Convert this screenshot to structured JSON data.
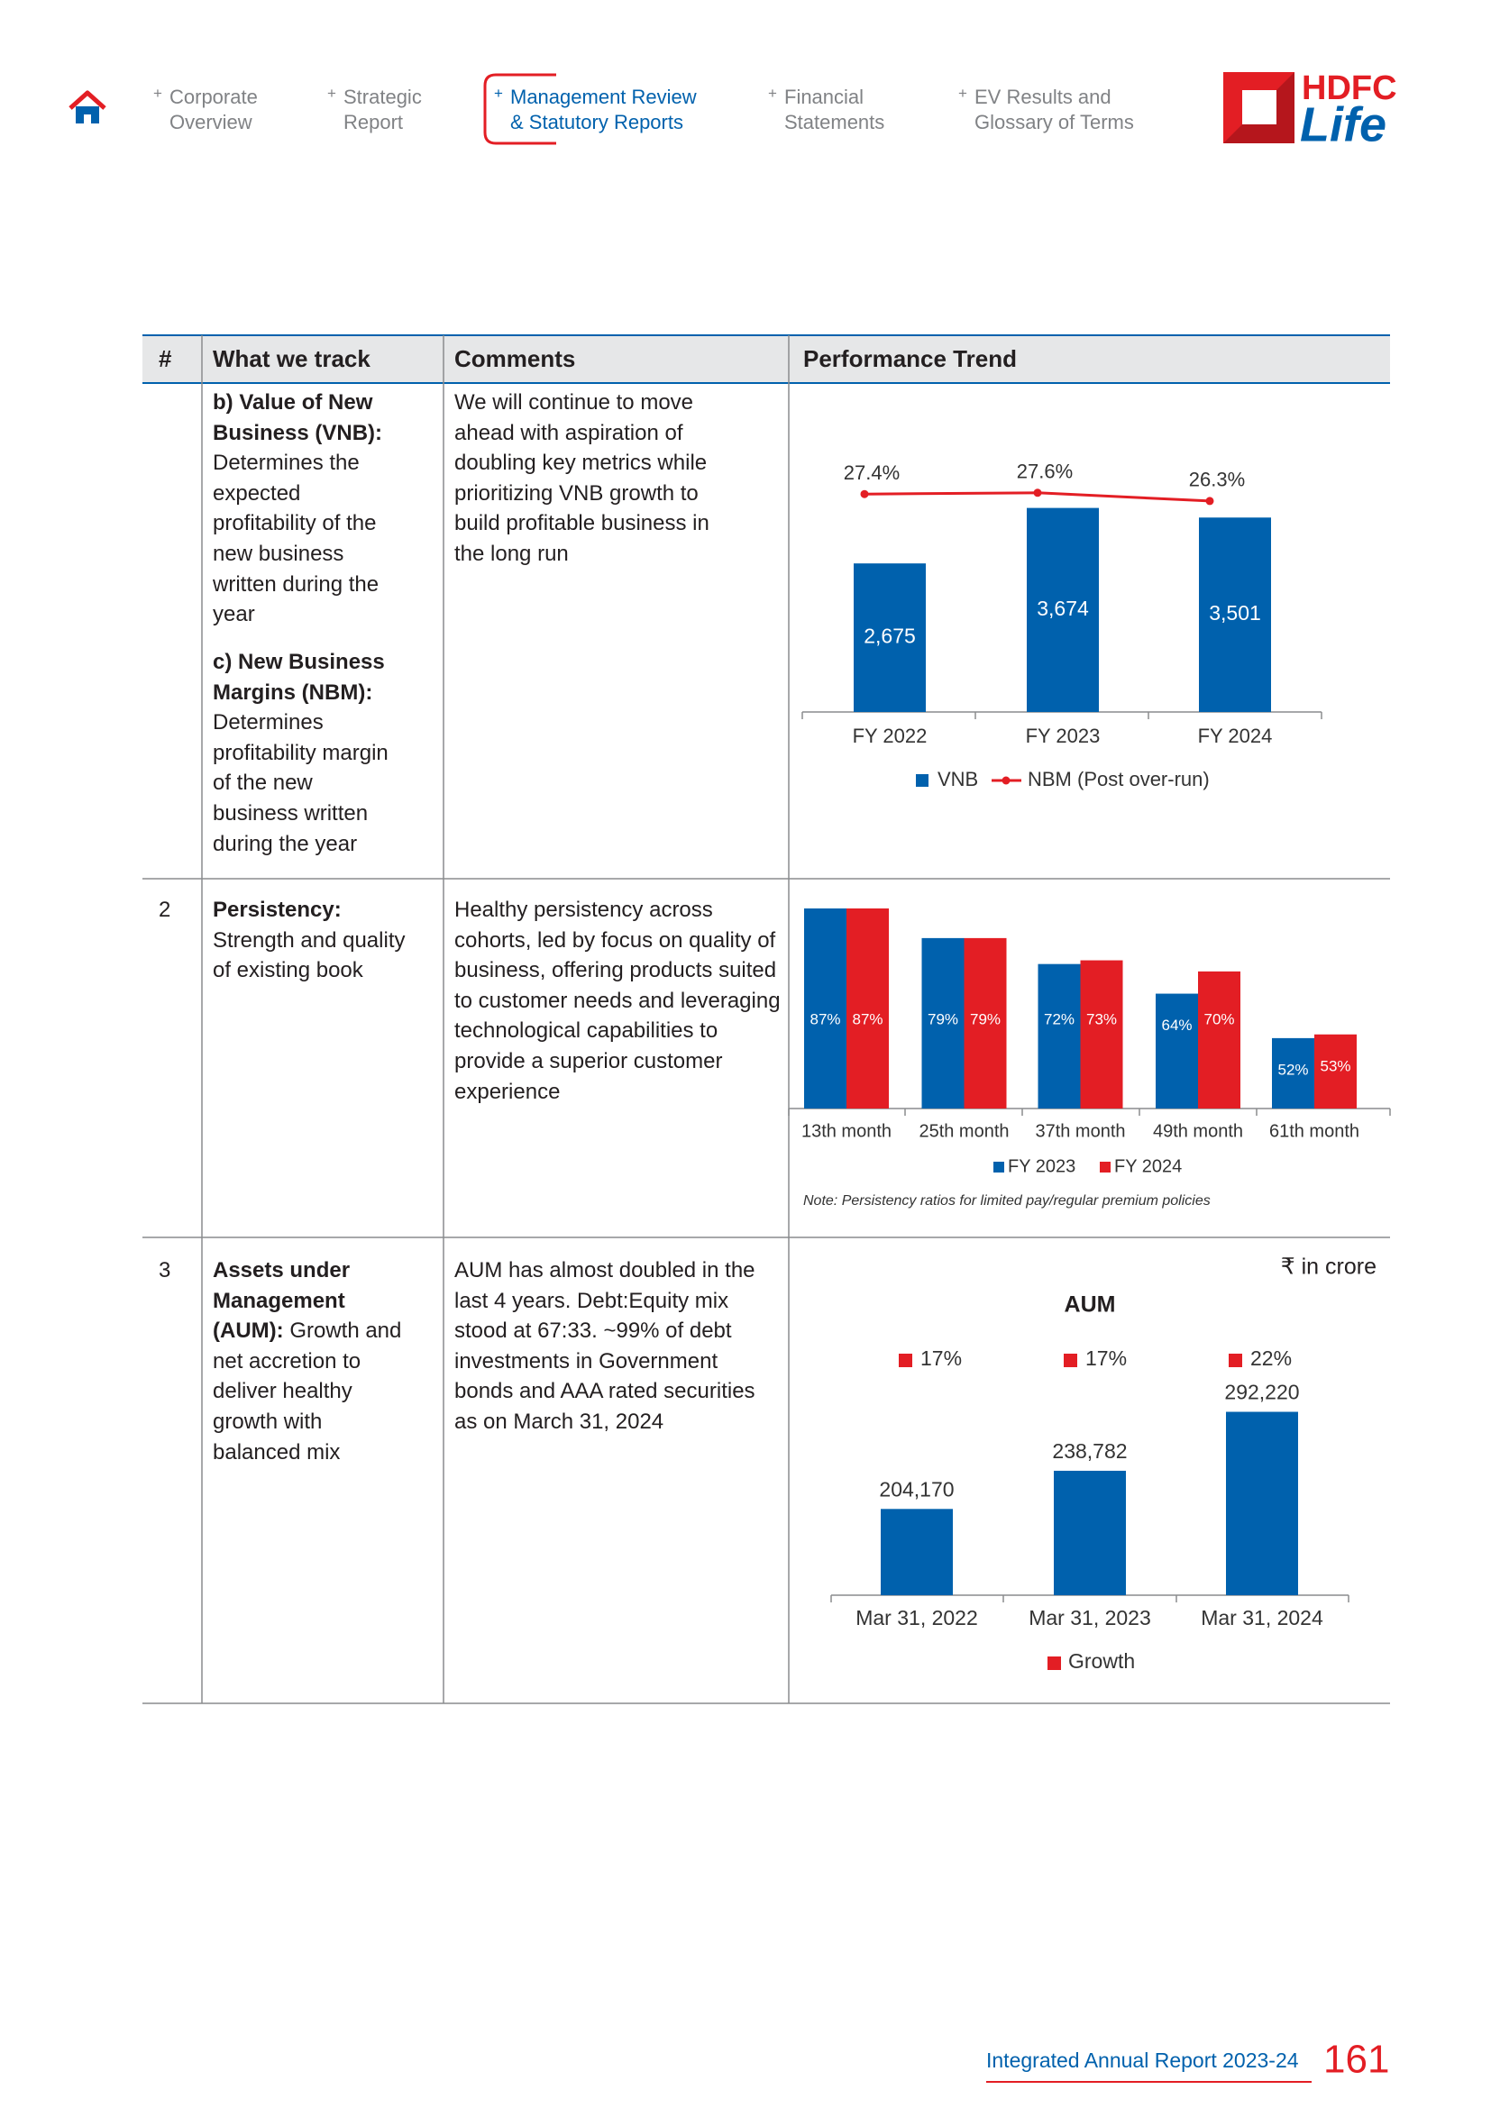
{
  "nav": {
    "marker": "+",
    "active": 2,
    "items": [
      {
        "lines": [
          "Corporate",
          "Overview"
        ]
      },
      {
        "lines": [
          "Strategic",
          "Report"
        ]
      },
      {
        "lines": [
          "Management Review",
          "& Statutory Reports"
        ]
      },
      {
        "lines": [
          "Financial",
          "Statements"
        ]
      },
      {
        "lines": [
          "EV Results and",
          "Glossary of Terms"
        ]
      }
    ]
  },
  "logo": {
    "top": "HDFC",
    "bottom": "Life"
  },
  "table": {
    "headers": [
      "#",
      "What we track",
      "Comments",
      "Performance Trend"
    ],
    "rows": [
      {
        "track": [
          {
            "title": "b) Value of New Business (VNB):",
            "text": "Determines the expected profitability of the new business written during the year"
          },
          {
            "title": "c) New Business Margins (NBM):",
            "text": "Determines profitability margin of the new business written during the year"
          }
        ],
        "comments": "We will continue to move ahead with aspiration of doubling key metrics while prioritizing VNB growth to build profitable business in the long run"
      },
      {
        "number": 2,
        "track": [
          {
            "title": "Persistency:",
            "text": "Strength and quality of existing book"
          }
        ],
        "comments": "Healthy persistency across cohorts, led by focus on quality of business, offering products suited to customer needs and leveraging technological capabilities to provide a superior customer experience"
      },
      {
        "number": 3,
        "track": [
          {
            "title": "Assets under Management (AUM):",
            "text": "Growth and net accretion to deliver healthy growth with balanced mix"
          }
        ],
        "comments": "AUM has almost doubled in the last 4 years. Debt:Equity mix stood at 67:33. ~99% of debt investments in Government bonds and AAA rated securities as on March 31, 2024"
      }
    ]
  },
  "charts": [
    {
      "type": "bar-line",
      "categories": [
        "FY 2022",
        "FY 2023",
        "FY 2024"
      ],
      "series": [
        {
          "name": "VNB",
          "color": "#0061ad",
          "values": [
            2675,
            3674,
            3501
          ],
          "value_labels": [
            "2,675",
            "3,674",
            "3,501"
          ]
        },
        {
          "name": "NBM (Post over-run)",
          "color": "#e31e24",
          "axis": "y2",
          "values": [
            27.4,
            27.6,
            26.3
          ],
          "value_labels": [
            "27.4%",
            "27.6%",
            "26.3%"
          ]
        }
      ],
      "ylim": [
        0,
        3700
      ],
      "y2lim": [
        20,
        30
      ]
    },
    {
      "type": "grouped-bar",
      "categories": [
        "13th month",
        "25th month",
        "37th month",
        "49th month",
        "61th month"
      ],
      "series": [
        {
          "name": "FY 2023",
          "color": "#0061ad",
          "values": [
            87,
            79,
            72,
            64,
            52
          ],
          "value_labels": [
            "87%",
            "79%",
            "72%",
            "64%",
            "52%"
          ]
        },
        {
          "name": "FY 2024",
          "color": "#e31e24",
          "values": [
            87,
            79,
            73,
            70,
            53
          ],
          "value_labels": [
            "87%",
            "79%",
            "73%",
            "70%",
            "53%"
          ]
        }
      ],
      "ylim": [
        33,
        87
      ],
      "note": "Note: Persistency ratios for limited pay/regular premium policies"
    },
    {
      "type": "bar",
      "title": "AUM",
      "unit": "₹ in crore",
      "categories": [
        "Mar 31, 2022",
        "Mar 31, 2023",
        "Mar 31, 2024"
      ],
      "values": [
        204170,
        238782,
        292220
      ],
      "value_labels": [
        "204,170",
        "238,782",
        "292,220"
      ],
      "color": "#0061ad",
      "ylim": [
        126000,
        300000
      ],
      "growth": {
        "name": "Growth",
        "color": "#e31e24",
        "values": [
          17,
          17,
          22
        ],
        "value_labels": [
          "17%",
          "17%",
          "22%"
        ]
      }
    }
  ],
  "footer": {
    "text": "Integrated Annual Report 2023-24",
    "page": 161
  }
}
